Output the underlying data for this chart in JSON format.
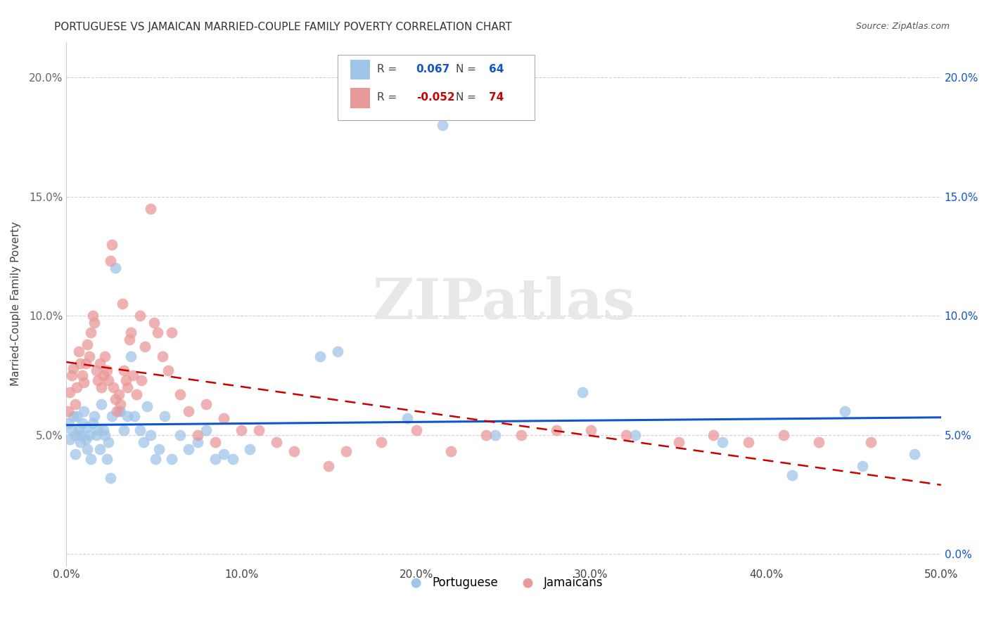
{
  "title": "PORTUGUESE VS JAMAICAN MARRIED-COUPLE FAMILY POVERTY CORRELATION CHART",
  "source": "Source: ZipAtlas.com",
  "ylabel": "Married-Couple Family Poverty",
  "xlabel_ticks": [
    "0.0%",
    "10.0%",
    "20.0%",
    "30.0%",
    "40.0%",
    "50.0%"
  ],
  "ylabel_ticks_left": [
    "",
    "5.0%",
    "10.0%",
    "15.0%",
    "20.0%"
  ],
  "ylabel_ticks_right": [
    "0.0%",
    "5.0%",
    "10.0%",
    "15.0%",
    "20.0%"
  ],
  "xlim": [
    0.0,
    0.5
  ],
  "ylim": [
    -0.005,
    0.215
  ],
  "legend_labels": [
    "Portuguese",
    "Jamaicans"
  ],
  "blue_r": "0.067",
  "blue_n": "64",
  "pink_r": "-0.052",
  "pink_n": "74",
  "blue_color": "#9fc5e8",
  "pink_color": "#ea9999",
  "blue_line_color": "#1155cc",
  "pink_line_color": "#cc0000",
  "tick_color_right": "#1155cc",
  "tick_color_left": "#666666",
  "watermark": "ZIPatlas",
  "blue_points": [
    [
      0.001,
      0.055
    ],
    [
      0.002,
      0.048
    ],
    [
      0.003,
      0.052
    ],
    [
      0.004,
      0.058
    ],
    [
      0.005,
      0.05
    ],
    [
      0.005,
      0.042
    ],
    [
      0.006,
      0.058
    ],
    [
      0.007,
      0.052
    ],
    [
      0.008,
      0.05
    ],
    [
      0.008,
      0.047
    ],
    [
      0.009,
      0.055
    ],
    [
      0.01,
      0.06
    ],
    [
      0.011,
      0.048
    ],
    [
      0.012,
      0.053
    ],
    [
      0.012,
      0.044
    ],
    [
      0.013,
      0.05
    ],
    [
      0.014,
      0.04
    ],
    [
      0.015,
      0.055
    ],
    [
      0.016,
      0.058
    ],
    [
      0.017,
      0.05
    ],
    [
      0.018,
      0.052
    ],
    [
      0.019,
      0.044
    ],
    [
      0.02,
      0.063
    ],
    [
      0.021,
      0.052
    ],
    [
      0.022,
      0.05
    ],
    [
      0.023,
      0.04
    ],
    [
      0.024,
      0.047
    ],
    [
      0.025,
      0.032
    ],
    [
      0.026,
      0.058
    ],
    [
      0.028,
      0.12
    ],
    [
      0.03,
      0.06
    ],
    [
      0.031,
      0.06
    ],
    [
      0.033,
      0.052
    ],
    [
      0.035,
      0.058
    ],
    [
      0.037,
      0.083
    ],
    [
      0.039,
      0.058
    ],
    [
      0.042,
      0.052
    ],
    [
      0.044,
      0.047
    ],
    [
      0.046,
      0.062
    ],
    [
      0.048,
      0.05
    ],
    [
      0.051,
      0.04
    ],
    [
      0.053,
      0.044
    ],
    [
      0.056,
      0.058
    ],
    [
      0.06,
      0.04
    ],
    [
      0.065,
      0.05
    ],
    [
      0.07,
      0.044
    ],
    [
      0.075,
      0.047
    ],
    [
      0.08,
      0.052
    ],
    [
      0.085,
      0.04
    ],
    [
      0.09,
      0.042
    ],
    [
      0.095,
      0.04
    ],
    [
      0.105,
      0.044
    ],
    [
      0.145,
      0.083
    ],
    [
      0.155,
      0.085
    ],
    [
      0.195,
      0.057
    ],
    [
      0.215,
      0.18
    ],
    [
      0.245,
      0.05
    ],
    [
      0.295,
      0.068
    ],
    [
      0.325,
      0.05
    ],
    [
      0.375,
      0.047
    ],
    [
      0.415,
      0.033
    ],
    [
      0.445,
      0.06
    ],
    [
      0.455,
      0.037
    ],
    [
      0.485,
      0.042
    ]
  ],
  "pink_points": [
    [
      0.001,
      0.06
    ],
    [
      0.002,
      0.068
    ],
    [
      0.003,
      0.075
    ],
    [
      0.004,
      0.078
    ],
    [
      0.005,
      0.063
    ],
    [
      0.006,
      0.07
    ],
    [
      0.007,
      0.085
    ],
    [
      0.008,
      0.08
    ],
    [
      0.009,
      0.075
    ],
    [
      0.01,
      0.072
    ],
    [
      0.011,
      0.08
    ],
    [
      0.012,
      0.088
    ],
    [
      0.013,
      0.083
    ],
    [
      0.014,
      0.093
    ],
    [
      0.015,
      0.1
    ],
    [
      0.016,
      0.097
    ],
    [
      0.017,
      0.077
    ],
    [
      0.018,
      0.073
    ],
    [
      0.019,
      0.08
    ],
    [
      0.02,
      0.07
    ],
    [
      0.021,
      0.075
    ],
    [
      0.022,
      0.083
    ],
    [
      0.023,
      0.077
    ],
    [
      0.024,
      0.073
    ],
    [
      0.025,
      0.123
    ],
    [
      0.026,
      0.13
    ],
    [
      0.027,
      0.07
    ],
    [
      0.028,
      0.065
    ],
    [
      0.029,
      0.06
    ],
    [
      0.03,
      0.067
    ],
    [
      0.031,
      0.063
    ],
    [
      0.032,
      0.105
    ],
    [
      0.033,
      0.077
    ],
    [
      0.034,
      0.073
    ],
    [
      0.035,
      0.07
    ],
    [
      0.036,
      0.09
    ],
    [
      0.037,
      0.093
    ],
    [
      0.038,
      0.075
    ],
    [
      0.04,
      0.067
    ],
    [
      0.042,
      0.1
    ],
    [
      0.043,
      0.073
    ],
    [
      0.045,
      0.087
    ],
    [
      0.048,
      0.145
    ],
    [
      0.05,
      0.097
    ],
    [
      0.052,
      0.093
    ],
    [
      0.055,
      0.083
    ],
    [
      0.058,
      0.077
    ],
    [
      0.06,
      0.093
    ],
    [
      0.065,
      0.067
    ],
    [
      0.07,
      0.06
    ],
    [
      0.075,
      0.05
    ],
    [
      0.08,
      0.063
    ],
    [
      0.085,
      0.047
    ],
    [
      0.09,
      0.057
    ],
    [
      0.1,
      0.052
    ],
    [
      0.11,
      0.052
    ],
    [
      0.12,
      0.047
    ],
    [
      0.13,
      0.043
    ],
    [
      0.15,
      0.037
    ],
    [
      0.16,
      0.043
    ],
    [
      0.18,
      0.047
    ],
    [
      0.2,
      0.052
    ],
    [
      0.22,
      0.043
    ],
    [
      0.24,
      0.05
    ],
    [
      0.26,
      0.05
    ],
    [
      0.28,
      0.052
    ],
    [
      0.3,
      0.052
    ],
    [
      0.32,
      0.05
    ],
    [
      0.35,
      0.047
    ],
    [
      0.37,
      0.05
    ],
    [
      0.39,
      0.047
    ],
    [
      0.41,
      0.05
    ],
    [
      0.43,
      0.047
    ],
    [
      0.46,
      0.047
    ]
  ]
}
